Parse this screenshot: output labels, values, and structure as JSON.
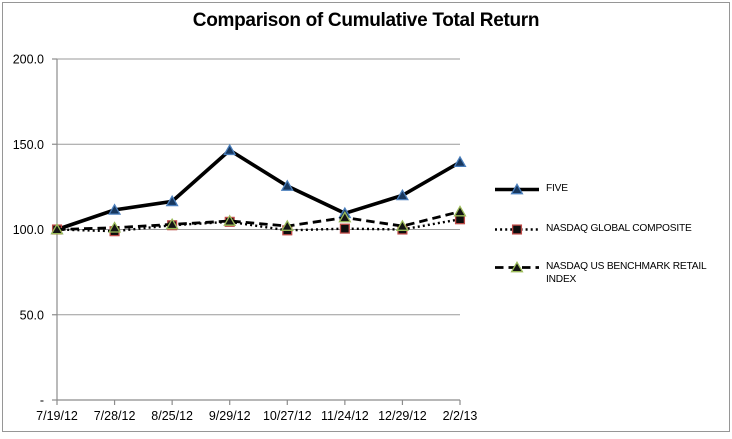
{
  "chart_data": {
    "type": "line",
    "title": "Comparison of Cumulative Total Return",
    "xlabel": "",
    "ylabel": "",
    "ylim": [
      0,
      200
    ],
    "grid": true,
    "legend_position": "right",
    "categories": [
      "7/19/12",
      "7/28/12",
      "8/25/12",
      "9/29/12",
      "10/27/12",
      "11/24/12",
      "12/29/12",
      "2/2/13"
    ],
    "y_ticks": [
      {
        "value": 200,
        "label": "200.0"
      },
      {
        "value": 150,
        "label": "150.0"
      },
      {
        "value": 100,
        "label": "100.0"
      },
      {
        "value": 50,
        "label": "50.0"
      },
      {
        "value": 0,
        "label": "-"
      }
    ],
    "series": [
      {
        "id": "five",
        "name": "FIVE",
        "values": [
          100.0,
          111.5,
          116.5,
          146.5,
          125.5,
          109.5,
          120.0,
          139.5
        ],
        "line_style": "solid",
        "marker": "triangle",
        "line_color": "#000000",
        "marker_fill": "#17375e",
        "marker_stroke": "#4a7ebb"
      },
      {
        "id": "nasdaq-global-composite",
        "name": "NASDAQ GLOBAL COMPOSITE",
        "values": [
          100.0,
          99.0,
          102.5,
          104.5,
          99.5,
          100.5,
          100.0,
          106.0
        ],
        "line_style": "dotted",
        "marker": "square",
        "line_color": "#000000",
        "marker_fill": "#0d0d0d",
        "marker_stroke": "#be4b48"
      },
      {
        "id": "nasdaq-us-benchmark-retail-index",
        "name": "NASDAQ US BENCHMARK RETAIL INDEX",
        "values": [
          100.0,
          101.0,
          103.0,
          105.0,
          102.0,
          107.0,
          102.0,
          110.5
        ],
        "line_style": "dashed",
        "marker": "triangle",
        "line_color": "#000000",
        "marker_fill": "#141414",
        "marker_stroke": "#9bbb59"
      }
    ],
    "colors": {
      "gridline": "#9a9a9a",
      "axis": "#8c8c8c",
      "frame_border": "#969696",
      "text": "#000000",
      "background": "#ffffff"
    }
  }
}
